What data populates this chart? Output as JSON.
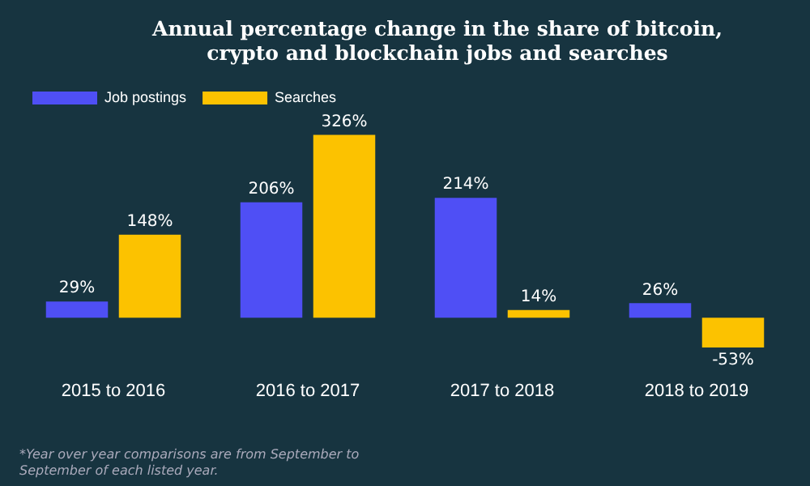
{
  "chart_data": {
    "type": "bar",
    "title": "Annual percentage change in the share of bitcoin, crypto and blockchain jobs and searches",
    "categories": [
      "2015 to 2016",
      "2016 to 2017",
      "2017 to 2018",
      "2018 to 2019"
    ],
    "series": [
      {
        "name": "Job postings",
        "color": "#4f4ff5",
        "values": [
          29,
          206,
          214,
          26
        ],
        "value_labels": [
          "29%",
          "206%",
          "214%",
          "26%"
        ]
      },
      {
        "name": "Searches",
        "color": "#fcc200",
        "values": [
          148,
          326,
          14,
          -53
        ],
        "value_labels": [
          "148%",
          "326%",
          "14%",
          "-53%"
        ]
      }
    ],
    "legend": "top left",
    "grid": false,
    "annotations": [
      "*Year over year comparisons are from September to September of each listed year."
    ]
  }
}
